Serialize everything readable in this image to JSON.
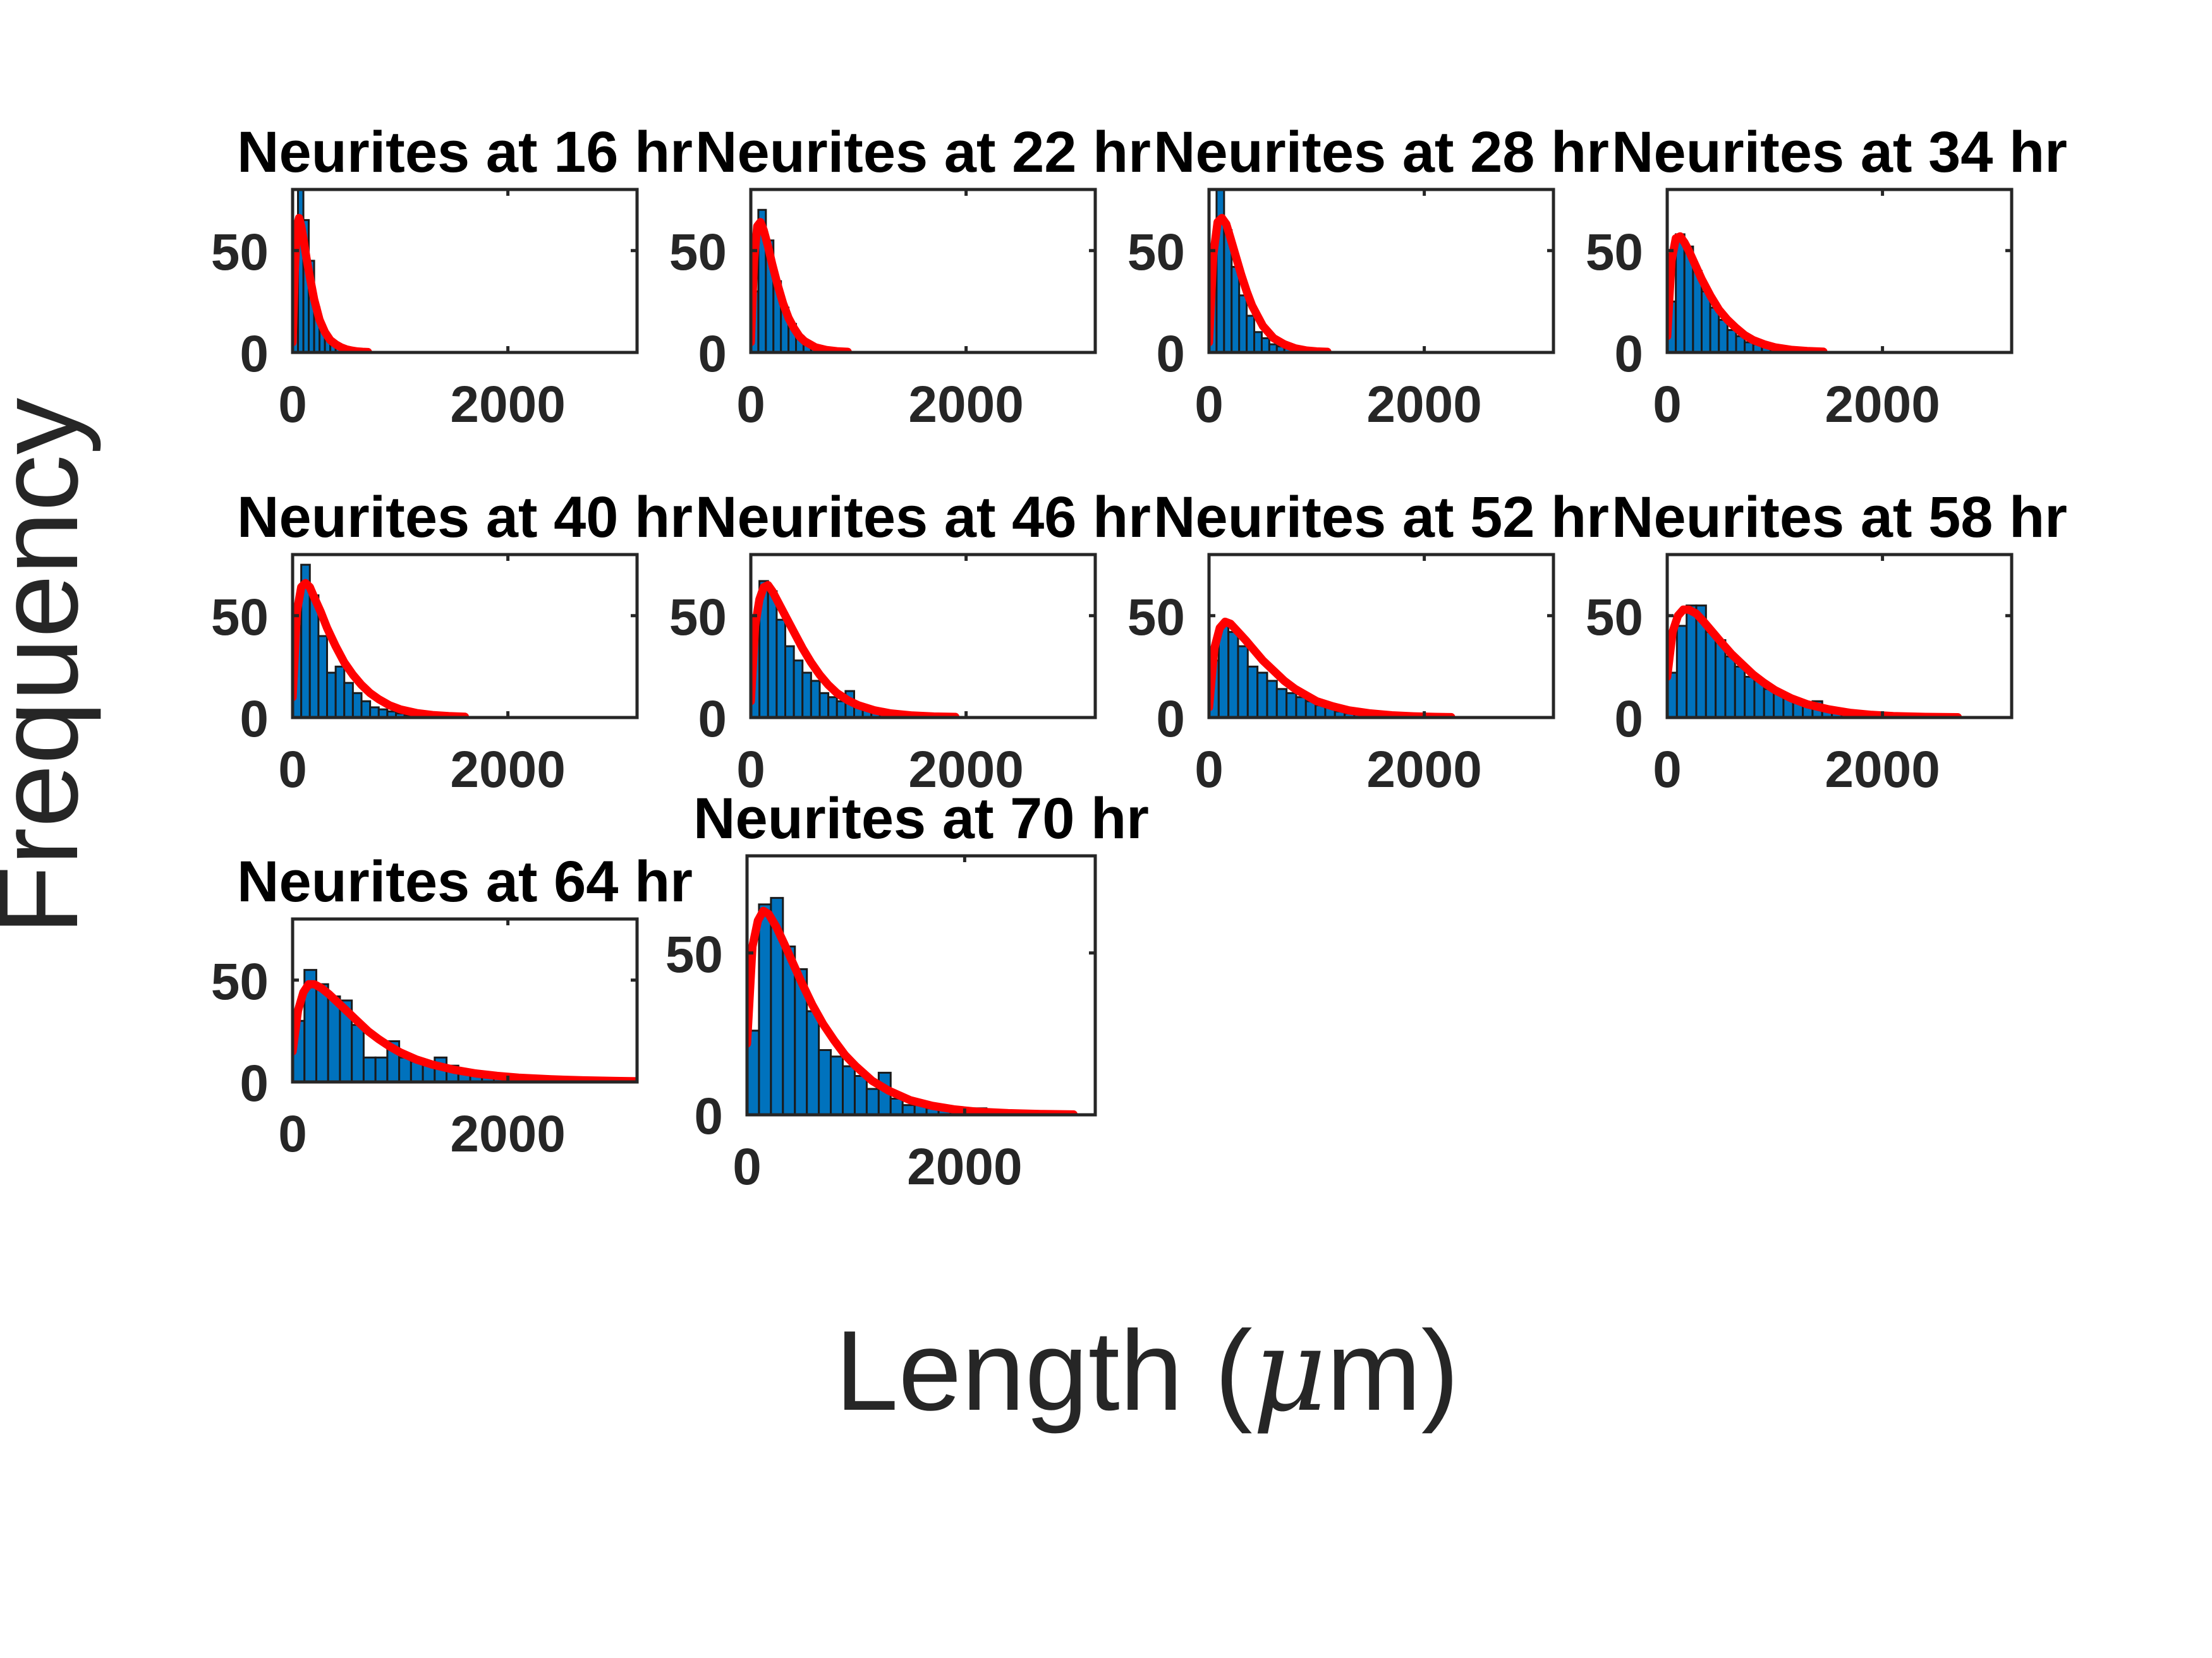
{
  "figure": {
    "xlabel_text": "Length (",
    "xlabel_mu": "μ",
    "xlabel_tail": "m)",
    "ylabel": "Frequency"
  },
  "colors": {
    "bar_fill": "#0072BD",
    "bar_edge": "#1a1a1a",
    "fit_line": "#FF0000",
    "axes": "#262626",
    "title": "#000000"
  },
  "chart_data": [
    {
      "type": "bar",
      "title": "Neurites at 16 hr",
      "xlim": [
        0,
        3200
      ],
      "ylim": [
        0,
        80
      ],
      "xticks": [
        0,
        2000
      ],
      "yticks": [
        0,
        50
      ],
      "bin_width": 50,
      "bin_start": 0,
      "values": [
        30,
        80,
        65,
        45,
        22,
        12,
        7,
        4,
        3,
        2,
        1,
        1,
        1,
        1
      ],
      "fit": {
        "x": [
          0,
          20,
          40,
          60,
          80,
          100,
          130,
          160,
          200,
          250,
          300,
          350,
          400,
          450,
          500,
          550,
          600,
          650,
          700
        ],
        "y": [
          5,
          40,
          62,
          66,
          62,
          56,
          46,
          37,
          26,
          16,
          10,
          6,
          4,
          2.5,
          1.5,
          0.9,
          0.5,
          0.3,
          0.2
        ]
      }
    },
    {
      "type": "bar",
      "title": "Neurites at 22 hr",
      "xlim": [
        0,
        3200
      ],
      "ylim": [
        0,
        80
      ],
      "xticks": [
        0,
        2000
      ],
      "yticks": [
        0,
        50
      ],
      "bin_width": 70,
      "bin_start": 0,
      "values": [
        30,
        70,
        55,
        35,
        22,
        14,
        8,
        5,
        3,
        2,
        1,
        1,
        1
      ],
      "fit": {
        "x": [
          0,
          30,
          60,
          90,
          120,
          160,
          200,
          250,
          300,
          350,
          400,
          450,
          500,
          600,
          700,
          800,
          900
        ],
        "y": [
          5,
          45,
          62,
          64,
          60,
          52,
          43,
          33,
          24,
          17,
          12,
          8,
          5.5,
          2.5,
          1.2,
          0.6,
          0.3
        ]
      }
    },
    {
      "type": "bar",
      "title": "Neurites at 28 hr",
      "xlim": [
        0,
        3200
      ],
      "ylim": [
        0,
        80
      ],
      "xticks": [
        0,
        2000
      ],
      "yticks": [
        0,
        50
      ],
      "bin_width": 70,
      "bin_start": 0,
      "values": [
        40,
        85,
        60,
        42,
        28,
        18,
        10,
        7,
        4,
        3,
        2,
        1,
        1
      ],
      "fit": {
        "x": [
          0,
          40,
          80,
          120,
          160,
          200,
          250,
          300,
          350,
          400,
          450,
          500,
          600,
          700,
          800,
          900,
          1000,
          1100
        ],
        "y": [
          5,
          48,
          64,
          66,
          63,
          56,
          47,
          38,
          30,
          23,
          18,
          13,
          7,
          4,
          2,
          1,
          0.5,
          0.3
        ]
      }
    },
    {
      "type": "bar",
      "title": "Neurites at 34 hr",
      "xlim": [
        0,
        3200
      ],
      "ylim": [
        0,
        80
      ],
      "xticks": [
        0,
        2000
      ],
      "yticks": [
        0,
        50
      ],
      "bin_width": 80,
      "bin_start": 0,
      "values": [
        25,
        58,
        52,
        40,
        30,
        22,
        16,
        11,
        8,
        5,
        4,
        3,
        2,
        1,
        1,
        1
      ],
      "fit": {
        "x": [
          0,
          40,
          80,
          120,
          160,
          200,
          260,
          320,
          400,
          480,
          560,
          640,
          720,
          800,
          900,
          1000,
          1150,
          1300,
          1450
        ],
        "y": [
          8,
          45,
          56,
          57,
          54,
          50,
          43,
          36,
          28,
          21,
          16,
          12,
          8.5,
          6,
          4,
          2.5,
          1.3,
          0.7,
          0.4
        ]
      }
    },
    {
      "type": "bar",
      "title": "Neurites at 40 hr",
      "xlim": [
        0,
        3200
      ],
      "ylim": [
        0,
        80
      ],
      "xticks": [
        0,
        2000
      ],
      "yticks": [
        0,
        50
      ],
      "bin_width": 80,
      "bin_start": 0,
      "values": [
        45,
        75,
        60,
        40,
        22,
        25,
        17,
        12,
        8,
        5,
        4,
        3,
        2,
        1,
        2,
        1,
        1,
        1
      ],
      "fit": {
        "x": [
          0,
          40,
          80,
          120,
          160,
          200,
          260,
          320,
          400,
          480,
          560,
          640,
          720,
          800,
          900,
          1000,
          1150,
          1300,
          1450,
          1600
        ],
        "y": [
          10,
          52,
          64,
          66,
          64,
          59,
          52,
          44,
          35,
          27,
          21,
          16,
          12,
          9,
          6,
          4,
          2.2,
          1.2,
          0.7,
          0.4
        ]
      }
    },
    {
      "type": "bar",
      "title": "Neurites at 46 hr",
      "xlim": [
        0,
        3200
      ],
      "ylim": [
        0,
        80
      ],
      "xticks": [
        0,
        2000
      ],
      "yticks": [
        0,
        50
      ],
      "bin_width": 80,
      "bin_start": 0,
      "values": [
        45,
        67,
        62,
        48,
        35,
        28,
        22,
        18,
        12,
        10,
        8,
        13,
        6,
        4,
        3,
        2,
        1,
        1,
        1
      ],
      "fit": {
        "x": [
          0,
          40,
          80,
          120,
          160,
          200,
          260,
          320,
          400,
          480,
          560,
          640,
          720,
          800,
          900,
          1000,
          1150,
          1300,
          1500,
          1700,
          1900
        ],
        "y": [
          8,
          45,
          58,
          64,
          65,
          62,
          56,
          50,
          42,
          34,
          27,
          21,
          16,
          12,
          8.5,
          6,
          3.5,
          2,
          1,
          0.5,
          0.3
        ]
      }
    },
    {
      "type": "bar",
      "title": "Neurites at 52 hr",
      "xlim": [
        0,
        3200
      ],
      "ylim": [
        0,
        80
      ],
      "xticks": [
        0,
        2000
      ],
      "yticks": [
        0,
        50
      ],
      "bin_width": 90,
      "bin_start": 0,
      "values": [
        28,
        45,
        42,
        35,
        25,
        22,
        18,
        14,
        12,
        10,
        8,
        6,
        5,
        3,
        2,
        2,
        1,
        1,
        1,
        1
      ],
      "fit": {
        "x": [
          0,
          50,
          100,
          150,
          200,
          270,
          340,
          420,
          500,
          600,
          700,
          800,
          900,
          1000,
          1150,
          1300,
          1500,
          1700,
          1900,
          2100,
          2250
        ],
        "y": [
          5,
          34,
          44,
          47,
          46,
          42,
          38,
          33,
          28,
          23,
          18,
          14,
          11,
          8,
          5.5,
          3.5,
          2,
          1.1,
          0.6,
          0.3,
          0.2
        ]
      }
    },
    {
      "type": "bar",
      "title": "Neurites at 58 hr",
      "xlim": [
        0,
        3200
      ],
      "ylim": [
        0,
        80
      ],
      "xticks": [
        0,
        2000
      ],
      "yticks": [
        0,
        50
      ],
      "bin_width": 90,
      "bin_start": 0,
      "values": [
        22,
        45,
        55,
        55,
        42,
        38,
        30,
        25,
        20,
        18,
        14,
        12,
        10,
        8,
        7,
        8,
        4,
        3,
        2,
        2,
        1,
        1
      ],
      "fit": {
        "x": [
          0,
          50,
          100,
          150,
          200,
          270,
          340,
          420,
          500,
          600,
          700,
          800,
          900,
          1000,
          1150,
          1300,
          1500,
          1700,
          1900,
          2100,
          2400,
          2700
        ],
        "y": [
          20,
          42,
          50,
          53,
          53,
          51,
          47,
          42,
          37,
          31,
          26,
          21,
          17,
          13.5,
          9.5,
          6.5,
          4,
          2.3,
          1.3,
          0.7,
          0.3,
          0.15
        ]
      }
    },
    {
      "type": "bar",
      "title": "Neurites at 64 hr",
      "xlim": [
        0,
        3200
      ],
      "ylim": [
        0,
        80
      ],
      "xticks": [
        0,
        2000
      ],
      "yticks": [
        0,
        50
      ],
      "bin_width": 110,
      "bin_start": 0,
      "values": [
        30,
        55,
        48,
        42,
        40,
        28,
        12,
        12,
        20,
        12,
        10,
        9,
        12,
        8,
        5,
        4,
        3,
        2,
        2,
        1,
        1,
        1,
        1,
        1
      ],
      "fit": {
        "x": [
          0,
          50,
          100,
          150,
          200,
          270,
          340,
          420,
          500,
          600,
          700,
          800,
          900,
          1000,
          1150,
          1300,
          1500,
          1700,
          1900,
          2100,
          2400,
          2700,
          3000,
          3200
        ],
        "y": [
          15,
          35,
          44,
          48,
          48,
          46,
          43,
          39,
          35,
          30,
          25,
          21,
          17.5,
          14.5,
          11,
          8.5,
          6,
          4.2,
          3,
          2.1,
          1.3,
          0.8,
          0.5,
          0.35
        ]
      }
    },
    {
      "type": "bar",
      "title": "Neurites at 70 hr",
      "xlim": [
        0,
        3200
      ],
      "ylim": [
        0,
        80
      ],
      "xticks": [
        0,
        2000
      ],
      "yticks": [
        0,
        50
      ],
      "bin_width": 110,
      "bin_start": 0,
      "values": [
        26,
        65,
        67,
        52,
        45,
        32,
        20,
        18,
        15,
        12,
        8,
        13,
        5,
        3,
        3,
        2,
        2,
        1,
        1,
        2,
        1,
        1,
        1,
        1
      ],
      "fit": {
        "x": [
          0,
          50,
          100,
          150,
          200,
          270,
          340,
          420,
          500,
          600,
          700,
          800,
          900,
          1000,
          1150,
          1300,
          1500,
          1700,
          1900,
          2100,
          2400,
          2700,
          3000
        ],
        "y": [
          22,
          52,
          60,
          63,
          62,
          58,
          53,
          47,
          41,
          34,
          28,
          23,
          18.5,
          15,
          10.5,
          7.5,
          4.5,
          2.8,
          1.7,
          1,
          0.5,
          0.25,
          0.12
        ]
      }
    }
  ]
}
